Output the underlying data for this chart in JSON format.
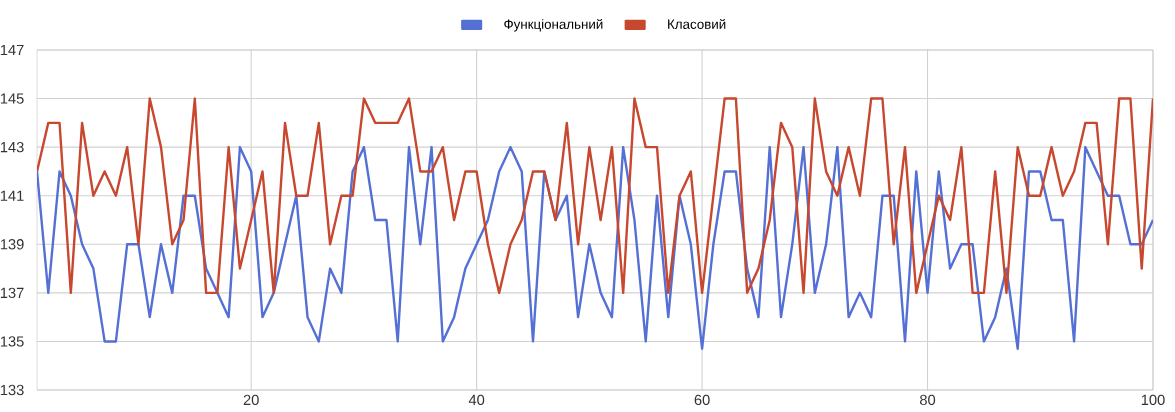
{
  "chart_data": {
    "type": "line",
    "x": [
      1,
      2,
      3,
      4,
      5,
      6,
      7,
      8,
      9,
      10,
      11,
      12,
      13,
      14,
      15,
      16,
      17,
      18,
      19,
      20,
      21,
      22,
      23,
      24,
      25,
      26,
      27,
      28,
      29,
      30,
      31,
      32,
      33,
      34,
      35,
      36,
      37,
      38,
      39,
      40,
      41,
      42,
      43,
      44,
      45,
      46,
      47,
      48,
      49,
      50,
      51,
      52,
      53,
      54,
      55,
      56,
      57,
      58,
      59,
      60,
      61,
      62,
      63,
      64,
      65,
      66,
      67,
      68,
      69,
      70,
      71,
      72,
      73,
      74,
      75,
      76,
      77,
      78,
      79,
      80,
      81,
      82,
      83,
      84,
      85,
      86,
      87,
      88,
      89,
      90,
      91,
      92,
      93,
      94,
      95,
      96,
      97,
      98,
      99,
      100
    ],
    "series": [
      {
        "name": "Функціональний",
        "color": "#5470d4",
        "values": [
          142,
          137,
          142,
          141,
          139,
          138,
          135,
          135,
          139,
          139,
          136,
          139,
          137,
          141,
          141,
          138,
          137,
          136,
          143,
          142,
          136,
          137,
          139,
          141,
          136,
          135,
          138,
          137,
          142,
          143,
          140,
          140,
          135,
          143,
          139,
          143,
          135,
          136,
          138,
          139,
          140,
          142,
          143,
          142,
          135,
          142,
          140,
          141,
          136,
          139,
          137,
          136,
          143,
          140,
          135,
          141,
          136,
          141,
          139,
          134.7,
          139,
          142,
          142,
          138,
          136,
          143,
          136,
          139,
          143,
          137,
          139,
          143,
          136,
          137,
          136,
          141,
          141,
          135,
          142,
          137,
          142,
          138,
          139,
          139,
          135,
          136,
          138,
          134.7,
          142,
          142,
          140,
          140,
          135,
          143,
          142,
          141,
          141,
          139,
          139,
          140
        ]
      },
      {
        "name": "Класовий",
        "color": "#c8482f",
        "values": [
          142,
          144,
          144,
          137,
          144,
          141,
          142,
          141,
          143,
          139,
          145,
          143,
          139,
          140,
          145,
          137,
          137,
          143,
          138,
          140,
          142,
          137,
          144,
          141,
          141,
          144,
          139,
          141,
          141,
          145,
          144,
          144,
          144,
          145,
          142,
          142,
          143,
          140,
          142,
          142,
          139,
          137,
          139,
          140,
          142,
          142,
          140,
          144,
          139,
          143,
          140,
          143,
          137,
          145,
          143,
          143,
          137,
          141,
          142,
          137,
          141,
          145,
          145,
          137,
          138,
          140,
          144,
          143,
          137,
          145,
          142,
          141,
          143,
          141,
          145,
          145,
          139,
          143,
          137,
          139,
          141,
          140,
          143,
          137,
          137,
          142,
          137,
          143,
          141,
          141,
          143,
          141,
          142,
          144,
          144,
          139,
          145,
          145,
          138,
          145
        ]
      }
    ],
    "xlim": [
      1,
      100
    ],
    "xticks": [
      20,
      40,
      60,
      80,
      100
    ],
    "ylim": [
      133,
      147
    ],
    "yticks": [
      133,
      135,
      137,
      139,
      141,
      143,
      145,
      147
    ],
    "grid": true,
    "legend": "top",
    "line_style": "solid"
  }
}
